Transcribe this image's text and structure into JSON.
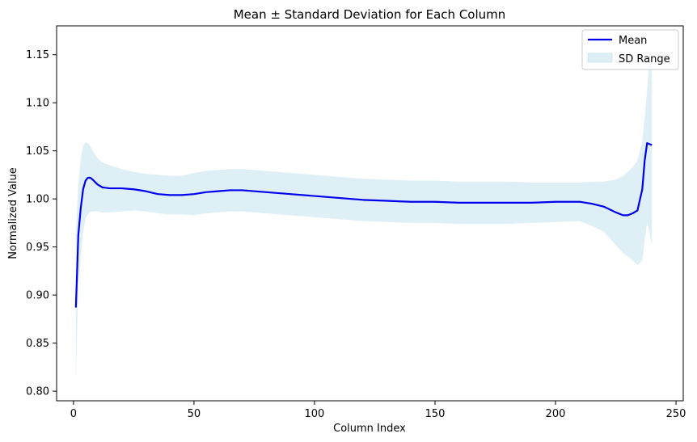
{
  "chart_data": {
    "type": "line",
    "title": "Mean ± Standard Deviation for Each Column",
    "xlabel": "Column Index",
    "ylabel": "Normalized Value",
    "xlim": [
      -7,
      253
    ],
    "ylim": [
      0.79,
      1.18
    ],
    "xticks": [
      0,
      50,
      100,
      150,
      200,
      250
    ],
    "yticks": [
      0.8,
      0.85,
      0.9,
      0.95,
      1.0,
      1.05,
      1.1,
      1.15
    ],
    "legend": {
      "position": "top-right",
      "entries": [
        "Mean",
        "SD Range"
      ]
    },
    "colors": {
      "mean": "#0000ee",
      "band_fill": "#add8e6",
      "band_alpha": "0.4"
    },
    "series": [
      {
        "name": "Mean",
        "x": [
          1,
          2,
          3,
          4,
          5,
          6,
          7,
          8,
          10,
          12,
          15,
          20,
          25,
          30,
          35,
          40,
          45,
          50,
          55,
          60,
          65,
          70,
          80,
          90,
          100,
          110,
          120,
          130,
          140,
          150,
          160,
          170,
          180,
          190,
          200,
          210,
          215,
          220,
          225,
          228,
          230,
          232,
          234,
          236,
          237,
          238,
          239,
          240
        ],
        "y": [
          0.887,
          0.962,
          0.99,
          1.01,
          1.019,
          1.022,
          1.022,
          1.02,
          1.015,
          1.012,
          1.011,
          1.011,
          1.01,
          1.008,
          1.005,
          1.004,
          1.004,
          1.005,
          1.007,
          1.008,
          1.009,
          1.009,
          1.007,
          1.005,
          1.003,
          1.001,
          0.999,
          0.998,
          0.997,
          0.997,
          0.996,
          0.996,
          0.996,
          0.996,
          0.997,
          0.997,
          0.995,
          0.992,
          0.986,
          0.983,
          0.983,
          0.985,
          0.988,
          1.01,
          1.04,
          1.058,
          1.057,
          1.056
        ]
      },
      {
        "name": "SD Range",
        "x": [
          1,
          2,
          3,
          4,
          5,
          6,
          7,
          8,
          10,
          12,
          15,
          20,
          25,
          30,
          35,
          40,
          45,
          50,
          55,
          60,
          65,
          70,
          80,
          90,
          100,
          110,
          120,
          130,
          140,
          150,
          160,
          170,
          180,
          190,
          200,
          210,
          215,
          220,
          225,
          228,
          230,
          232,
          234,
          236,
          237,
          238,
          239,
          240
        ],
        "upper": [
          0.965,
          1.015,
          1.04,
          1.055,
          1.059,
          1.058,
          1.055,
          1.05,
          1.042,
          1.038,
          1.035,
          1.031,
          1.028,
          1.026,
          1.025,
          1.024,
          1.024,
          1.027,
          1.029,
          1.03,
          1.031,
          1.031,
          1.029,
          1.027,
          1.025,
          1.023,
          1.021,
          1.02,
          1.019,
          1.019,
          1.018,
          1.018,
          1.018,
          1.017,
          1.017,
          1.017,
          1.018,
          1.018,
          1.02,
          1.024,
          1.028,
          1.033,
          1.04,
          1.06,
          1.085,
          1.112,
          1.15,
          1.155
        ],
        "lower": [
          0.809,
          0.91,
          0.94,
          0.965,
          0.98,
          0.984,
          0.986,
          0.987,
          0.987,
          0.986,
          0.986,
          0.987,
          0.988,
          0.987,
          0.985,
          0.984,
          0.984,
          0.983,
          0.985,
          0.986,
          0.987,
          0.987,
          0.985,
          0.983,
          0.981,
          0.979,
          0.977,
          0.976,
          0.975,
          0.975,
          0.974,
          0.974,
          0.974,
          0.975,
          0.976,
          0.977,
          0.972,
          0.966,
          0.952,
          0.944,
          0.94,
          0.936,
          0.931,
          0.936,
          0.958,
          0.975,
          0.965,
          0.95
        ]
      }
    ]
  }
}
